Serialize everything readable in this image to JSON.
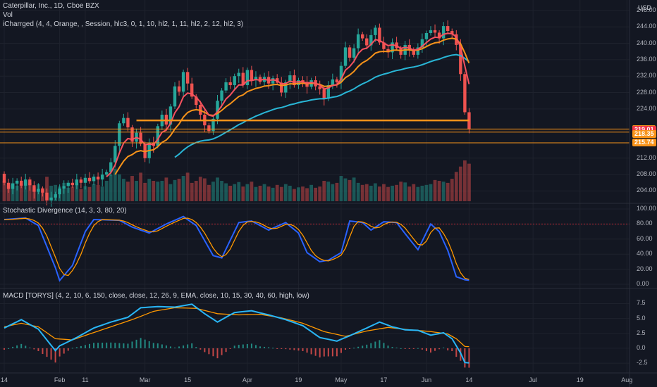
{
  "header": {
    "symbol_line": "Caterpillar, Inc., 1D, Cboe BZX",
    "vol_label": "Vol",
    "indicator_line": "iCharrged (4, 4, Orange, , Session, hlc3, 0, 1, 10, hl2, 1, 11, hl2, 2, 12, hl2, 3)",
    "currency": "USD"
  },
  "panes": {
    "stoch_title": "Stochastic Divergence (14, 3, 3, 80, 20)",
    "macd_title": "MACD [TORYS] (4, 2, 10, 6, 150, close, close, 12, 26, 9, EMA, close, 10, 15, 30, 40, 60, high, low)"
  },
  "x_axis": {
    "ticks": [
      {
        "label": "14",
        "i": 0
      },
      {
        "label": "Feb",
        "i": 13
      },
      {
        "label": "11",
        "i": 19
      },
      {
        "label": "Mar",
        "i": 33
      },
      {
        "label": "15",
        "i": 43
      },
      {
        "label": "Apr",
        "i": 57
      },
      {
        "label": "19",
        "i": 69
      },
      {
        "label": "May",
        "i": 79
      },
      {
        "label": "17",
        "i": 89
      },
      {
        "label": "Jun",
        "i": 99
      },
      {
        "label": "14",
        "i": 109
      },
      {
        "label": "Jul",
        "i": 124
      },
      {
        "label": "19",
        "i": 135
      },
      {
        "label": "Aug",
        "i": 146
      }
    ]
  },
  "price_axis": {
    "ticks": [
      "248.00",
      "244.00",
      "240.00",
      "236.00",
      "232.00",
      "228.00",
      "224.00",
      "212.00",
      "208.00",
      "204.00"
    ],
    "badges": [
      {
        "text": "219.11",
        "price": 219.11,
        "color": "#f7931a"
      },
      {
        "text": "219.01",
        "price": 219.01,
        "color": "#f23645"
      },
      {
        "text": "218.35",
        "price": 218.35,
        "color": "#f7931a"
      },
      {
        "text": "215.74",
        "price": 215.74,
        "color": "#f7931a"
      }
    ]
  },
  "stoch_axis": {
    "ticks": [
      "100.00",
      "80.00",
      "60.00",
      "40.00",
      "20.00",
      "0.00"
    ]
  },
  "macd_axis": {
    "ticks": [
      "7.5",
      "5.0",
      "2.5",
      "0.0",
      "-2.5"
    ]
  },
  "colors": {
    "up": "#26a69a",
    "down": "#ef5350",
    "background": "#131722",
    "ema_fast": "#f7525f",
    "ema_mid": "#f7931a",
    "ema_slow": "#29b6d6",
    "level": "#f7931a",
    "stoch_k": "#2962ff",
    "stoch_d": "#ff9800",
    "macd": "#29b6f6",
    "signal": "#ff9800"
  },
  "chart_data": {
    "type": "candlestick",
    "title": "Caterpillar, Inc., 1D, Cboe BZX",
    "price_range": [
      201.5,
      248.5
    ],
    "candles": [
      [
        208.2,
        206.0
      ],
      [
        206.0,
        204.5
      ],
      [
        204.5,
        205.8
      ],
      [
        205.8,
        206.5
      ],
      [
        206.5,
        205.3
      ],
      [
        205.3,
        206.8
      ],
      [
        206.8,
        205.4
      ],
      [
        205.4,
        203.8
      ],
      [
        203.8,
        204.5
      ],
      [
        204.5,
        203.6
      ],
      [
        203.6,
        201.8
      ],
      [
        201.8,
        202.4
      ],
      [
        202.4,
        203.2
      ],
      [
        203.2,
        204.6
      ],
      [
        204.6,
        205.2
      ],
      [
        205.2,
        206.0
      ],
      [
        206.0,
        205.4
      ],
      [
        205.4,
        206.8
      ],
      [
        206.8,
        206.0
      ],
      [
        206.0,
        207.2
      ],
      [
        207.2,
        206.4
      ],
      [
        206.4,
        207.5
      ],
      [
        207.5,
        206.8
      ],
      [
        206.8,
        208.0
      ],
      [
        208.0,
        208.6
      ],
      [
        208.6,
        211.0
      ],
      [
        211.0,
        215.0
      ],
      [
        215.0,
        220.5
      ],
      [
        220.5,
        221.8
      ],
      [
        221.8,
        219.5
      ],
      [
        219.5,
        216.0
      ],
      [
        216.0,
        218.2
      ],
      [
        218.2,
        215.5
      ],
      [
        215.5,
        212.0
      ],
      [
        212.0,
        215.8
      ],
      [
        215.8,
        215.0
      ],
      [
        215.0,
        219.8
      ],
      [
        219.8,
        222.6
      ],
      [
        222.6,
        220.2
      ],
      [
        220.2,
        224.6
      ],
      [
        224.6,
        229.5
      ],
      [
        229.5,
        228.2
      ],
      [
        228.2,
        233.0
      ],
      [
        233.0,
        230.2
      ],
      [
        230.2,
        227.0
      ],
      [
        227.0,
        225.0
      ],
      [
        225.0,
        222.6
      ],
      [
        222.6,
        220.0
      ],
      [
        220.0,
        218.6
      ],
      [
        218.6,
        221.6
      ],
      [
        221.6,
        226.0
      ],
      [
        226.0,
        228.5
      ],
      [
        228.5,
        230.5
      ],
      [
        230.5,
        229.8
      ],
      [
        229.8,
        232.0
      ],
      [
        232.0,
        232.8
      ],
      [
        232.8,
        229.8
      ],
      [
        229.8,
        233.5
      ],
      [
        233.5,
        231.0
      ],
      [
        231.0,
        231.8
      ],
      [
        231.8,
        230.6
      ],
      [
        230.6,
        231.8
      ],
      [
        231.8,
        230.2
      ],
      [
        230.2,
        231.5
      ],
      [
        231.5,
        230.4
      ],
      [
        230.4,
        228.0
      ],
      [
        228.0,
        230.5
      ],
      [
        230.5,
        232.2
      ],
      [
        232.2,
        229.8
      ],
      [
        229.8,
        231.0
      ],
      [
        231.0,
        230.6
      ],
      [
        230.6,
        229.4
      ],
      [
        229.4,
        231.0
      ],
      [
        231.0,
        229.5
      ],
      [
        229.5,
        228.8
      ],
      [
        228.8,
        226.5
      ],
      [
        226.5,
        229.8
      ],
      [
        229.8,
        231.2
      ],
      [
        231.2,
        230.5
      ],
      [
        230.5,
        234.5
      ],
      [
        234.5,
        239.0
      ],
      [
        239.0,
        236.5
      ],
      [
        236.5,
        238.8
      ],
      [
        238.8,
        242.2
      ],
      [
        242.2,
        241.2
      ],
      [
        241.2,
        239.5
      ],
      [
        239.5,
        242.0
      ],
      [
        242.0,
        243.8
      ],
      [
        243.8,
        240.2
      ],
      [
        240.2,
        238.6
      ],
      [
        238.6,
        237.8
      ],
      [
        237.8,
        240.2
      ],
      [
        240.2,
        238.8
      ],
      [
        238.8,
        237.2
      ],
      [
        237.2,
        239.6
      ],
      [
        239.6,
        238.4
      ],
      [
        238.4,
        237.2
      ],
      [
        237.2,
        239.0
      ],
      [
        239.0,
        241.0
      ],
      [
        241.0,
        242.5
      ],
      [
        242.5,
        243.2
      ],
      [
        243.2,
        242.6
      ],
      [
        242.6,
        241.2
      ],
      [
        241.2,
        244.2
      ],
      [
        244.2,
        243.0
      ],
      [
        243.0,
        242.2
      ],
      [
        242.2,
        239.6
      ],
      [
        239.6,
        232.5
      ],
      [
        232.5,
        223.2
      ],
      [
        223.2,
        219.01
      ]
    ],
    "volume_pattern": [
      0.5,
      0.4,
      0.45,
      0.38,
      0.42,
      0.5,
      0.45,
      0.35,
      0.42,
      0.33,
      0.6,
      0.38,
      0.4,
      0.36,
      0.45,
      0.33,
      0.36,
      0.44,
      0.3,
      0.37,
      0.35,
      0.42,
      0.4,
      0.36,
      0.5,
      0.65,
      0.8,
      0.66,
      0.55,
      0.48,
      0.62,
      0.5,
      0.7,
      0.45,
      0.55,
      0.5,
      0.48,
      0.5,
      0.58,
      0.42,
      0.52,
      0.55,
      0.62,
      0.7,
      0.45,
      0.5,
      0.6,
      0.56,
      0.4,
      0.48,
      0.58,
      0.5,
      0.44,
      0.38,
      0.42,
      0.47,
      0.36,
      0.42,
      0.48,
      0.35,
      0.38,
      0.42,
      0.36,
      0.33,
      0.4,
      0.35,
      0.42,
      0.38,
      0.3,
      0.34,
      0.36,
      0.32,
      0.4,
      0.33,
      0.36,
      0.5,
      0.48,
      0.42,
      0.45,
      0.62,
      0.56,
      0.52,
      0.58,
      0.45,
      0.4,
      0.42,
      0.38,
      0.44,
      0.36,
      0.42,
      0.35,
      0.38,
      0.4,
      0.48,
      0.46,
      0.36,
      0.42,
      0.35,
      0.38,
      0.4,
      0.42,
      0.52,
      0.5,
      0.48,
      0.45,
      0.55,
      0.72,
      0.85,
      1.0,
      0.92
    ],
    "levels": [
      219.11,
      218.35,
      215.74
    ],
    "stochastic": {
      "range": [
        0,
        100
      ],
      "k_anchors": [
        [
          0,
          86
        ],
        [
          5,
          88
        ],
        [
          8,
          78
        ],
        [
          12,
          22
        ],
        [
          13,
          5
        ],
        [
          16,
          25
        ],
        [
          19,
          70
        ],
        [
          21,
          86
        ],
        [
          27,
          85
        ],
        [
          30,
          76
        ],
        [
          34,
          68
        ],
        [
          38,
          80
        ],
        [
          42,
          90
        ],
        [
          45,
          78
        ],
        [
          49,
          38
        ],
        [
          51,
          35
        ],
        [
          55,
          82
        ],
        [
          58,
          84
        ],
        [
          62,
          72
        ],
        [
          66,
          82
        ],
        [
          69,
          68
        ],
        [
          71,
          42
        ],
        [
          74,
          30
        ],
        [
          76,
          32
        ],
        [
          79,
          42
        ],
        [
          81,
          84
        ],
        [
          84,
          82
        ],
        [
          86,
          72
        ],
        [
          89,
          83
        ],
        [
          92,
          82
        ],
        [
          95,
          60
        ],
        [
          97,
          46
        ],
        [
          100,
          80
        ],
        [
          102,
          70
        ],
        [
          104,
          45
        ],
        [
          106,
          10
        ],
        [
          108,
          6
        ]
      ]
    },
    "macd": {
      "range": [
        -3.2,
        8.5
      ],
      "macd_anchors": [
        [
          0,
          3.4
        ],
        [
          4,
          4.8
        ],
        [
          8,
          3.2
        ],
        [
          12,
          -0.4
        ],
        [
          13,
          0.4
        ],
        [
          17,
          1.8
        ],
        [
          21,
          3.4
        ],
        [
          25,
          4.4
        ],
        [
          29,
          5.2
        ],
        [
          32,
          6.8
        ],
        [
          36,
          7.0
        ],
        [
          40,
          6.9
        ],
        [
          44,
          7.4
        ],
        [
          47,
          5.8
        ],
        [
          50,
          4.4
        ],
        [
          54,
          6.0
        ],
        [
          58,
          6.3
        ],
        [
          62,
          5.6
        ],
        [
          66,
          4.8
        ],
        [
          70,
          3.8
        ],
        [
          74,
          1.8
        ],
        [
          78,
          1.2
        ],
        [
          81,
          2.1
        ],
        [
          85,
          3.4
        ],
        [
          88,
          4.4
        ],
        [
          91,
          3.6
        ],
        [
          94,
          3.1
        ],
        [
          97,
          3.0
        ],
        [
          100,
          2.2
        ],
        [
          103,
          2.6
        ],
        [
          105,
          1.6
        ],
        [
          107,
          -0.8
        ],
        [
          108,
          -2.4
        ]
      ],
      "signal_anchors": [
        [
          0,
          3.6
        ],
        [
          4,
          4.2
        ],
        [
          8,
          3.6
        ],
        [
          12,
          1.6
        ],
        [
          16,
          1.4
        ],
        [
          20,
          2.4
        ],
        [
          25,
          3.6
        ],
        [
          30,
          4.8
        ],
        [
          35,
          6.2
        ],
        [
          40,
          6.8
        ],
        [
          45,
          6.7
        ],
        [
          50,
          5.8
        ],
        [
          55,
          5.6
        ],
        [
          60,
          5.7
        ],
        [
          65,
          5.1
        ],
        [
          70,
          4.2
        ],
        [
          75,
          2.8
        ],
        [
          80,
          2.0
        ],
        [
          85,
          2.9
        ],
        [
          90,
          3.5
        ],
        [
          95,
          3.1
        ],
        [
          100,
          2.8
        ],
        [
          104,
          2.4
        ],
        [
          106,
          1.6
        ],
        [
          108,
          0.3
        ]
      ]
    }
  }
}
